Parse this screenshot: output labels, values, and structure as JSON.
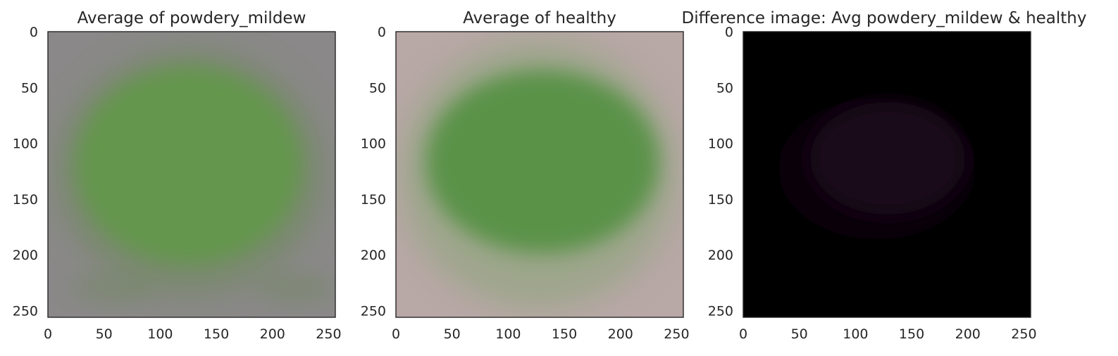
{
  "chart_data": [
    {
      "type": "image",
      "title": "Average of powdery_mildew",
      "xlim": [
        0,
        256
      ],
      "ylim": [
        256,
        0
      ],
      "xticks": [
        0,
        50,
        100,
        150,
        200,
        250
      ],
      "yticks": [
        0,
        50,
        100,
        150,
        200,
        250
      ],
      "grid": false,
      "colors": {
        "background": "#8a8888",
        "leaf": "#5e9a45",
        "leaf_edge": "#6d8a5a"
      }
    },
    {
      "type": "image",
      "title": "Average of healthy",
      "xlim": [
        0,
        256
      ],
      "ylim": [
        256,
        0
      ],
      "xticks": [
        0,
        50,
        100,
        150,
        200,
        250
      ],
      "yticks": [
        0,
        50,
        100,
        150,
        200,
        250
      ],
      "grid": false,
      "colors": {
        "background": "#b8a8a6",
        "leaf": "#4f8f3e",
        "leaf_edge": "#8fa57e"
      }
    },
    {
      "type": "image",
      "title": "Difference image: Avg powdery_mildew & healthy",
      "xlim": [
        0,
        256
      ],
      "ylim": [
        256,
        0
      ],
      "xticks": [
        0,
        50,
        100,
        150,
        200,
        250
      ],
      "yticks": [
        0,
        50,
        100,
        150,
        200,
        250
      ],
      "grid": false,
      "colors": {
        "background": "#000000",
        "leaf": "#1a0a1e",
        "leaf_edge": "#0d0510"
      }
    }
  ]
}
